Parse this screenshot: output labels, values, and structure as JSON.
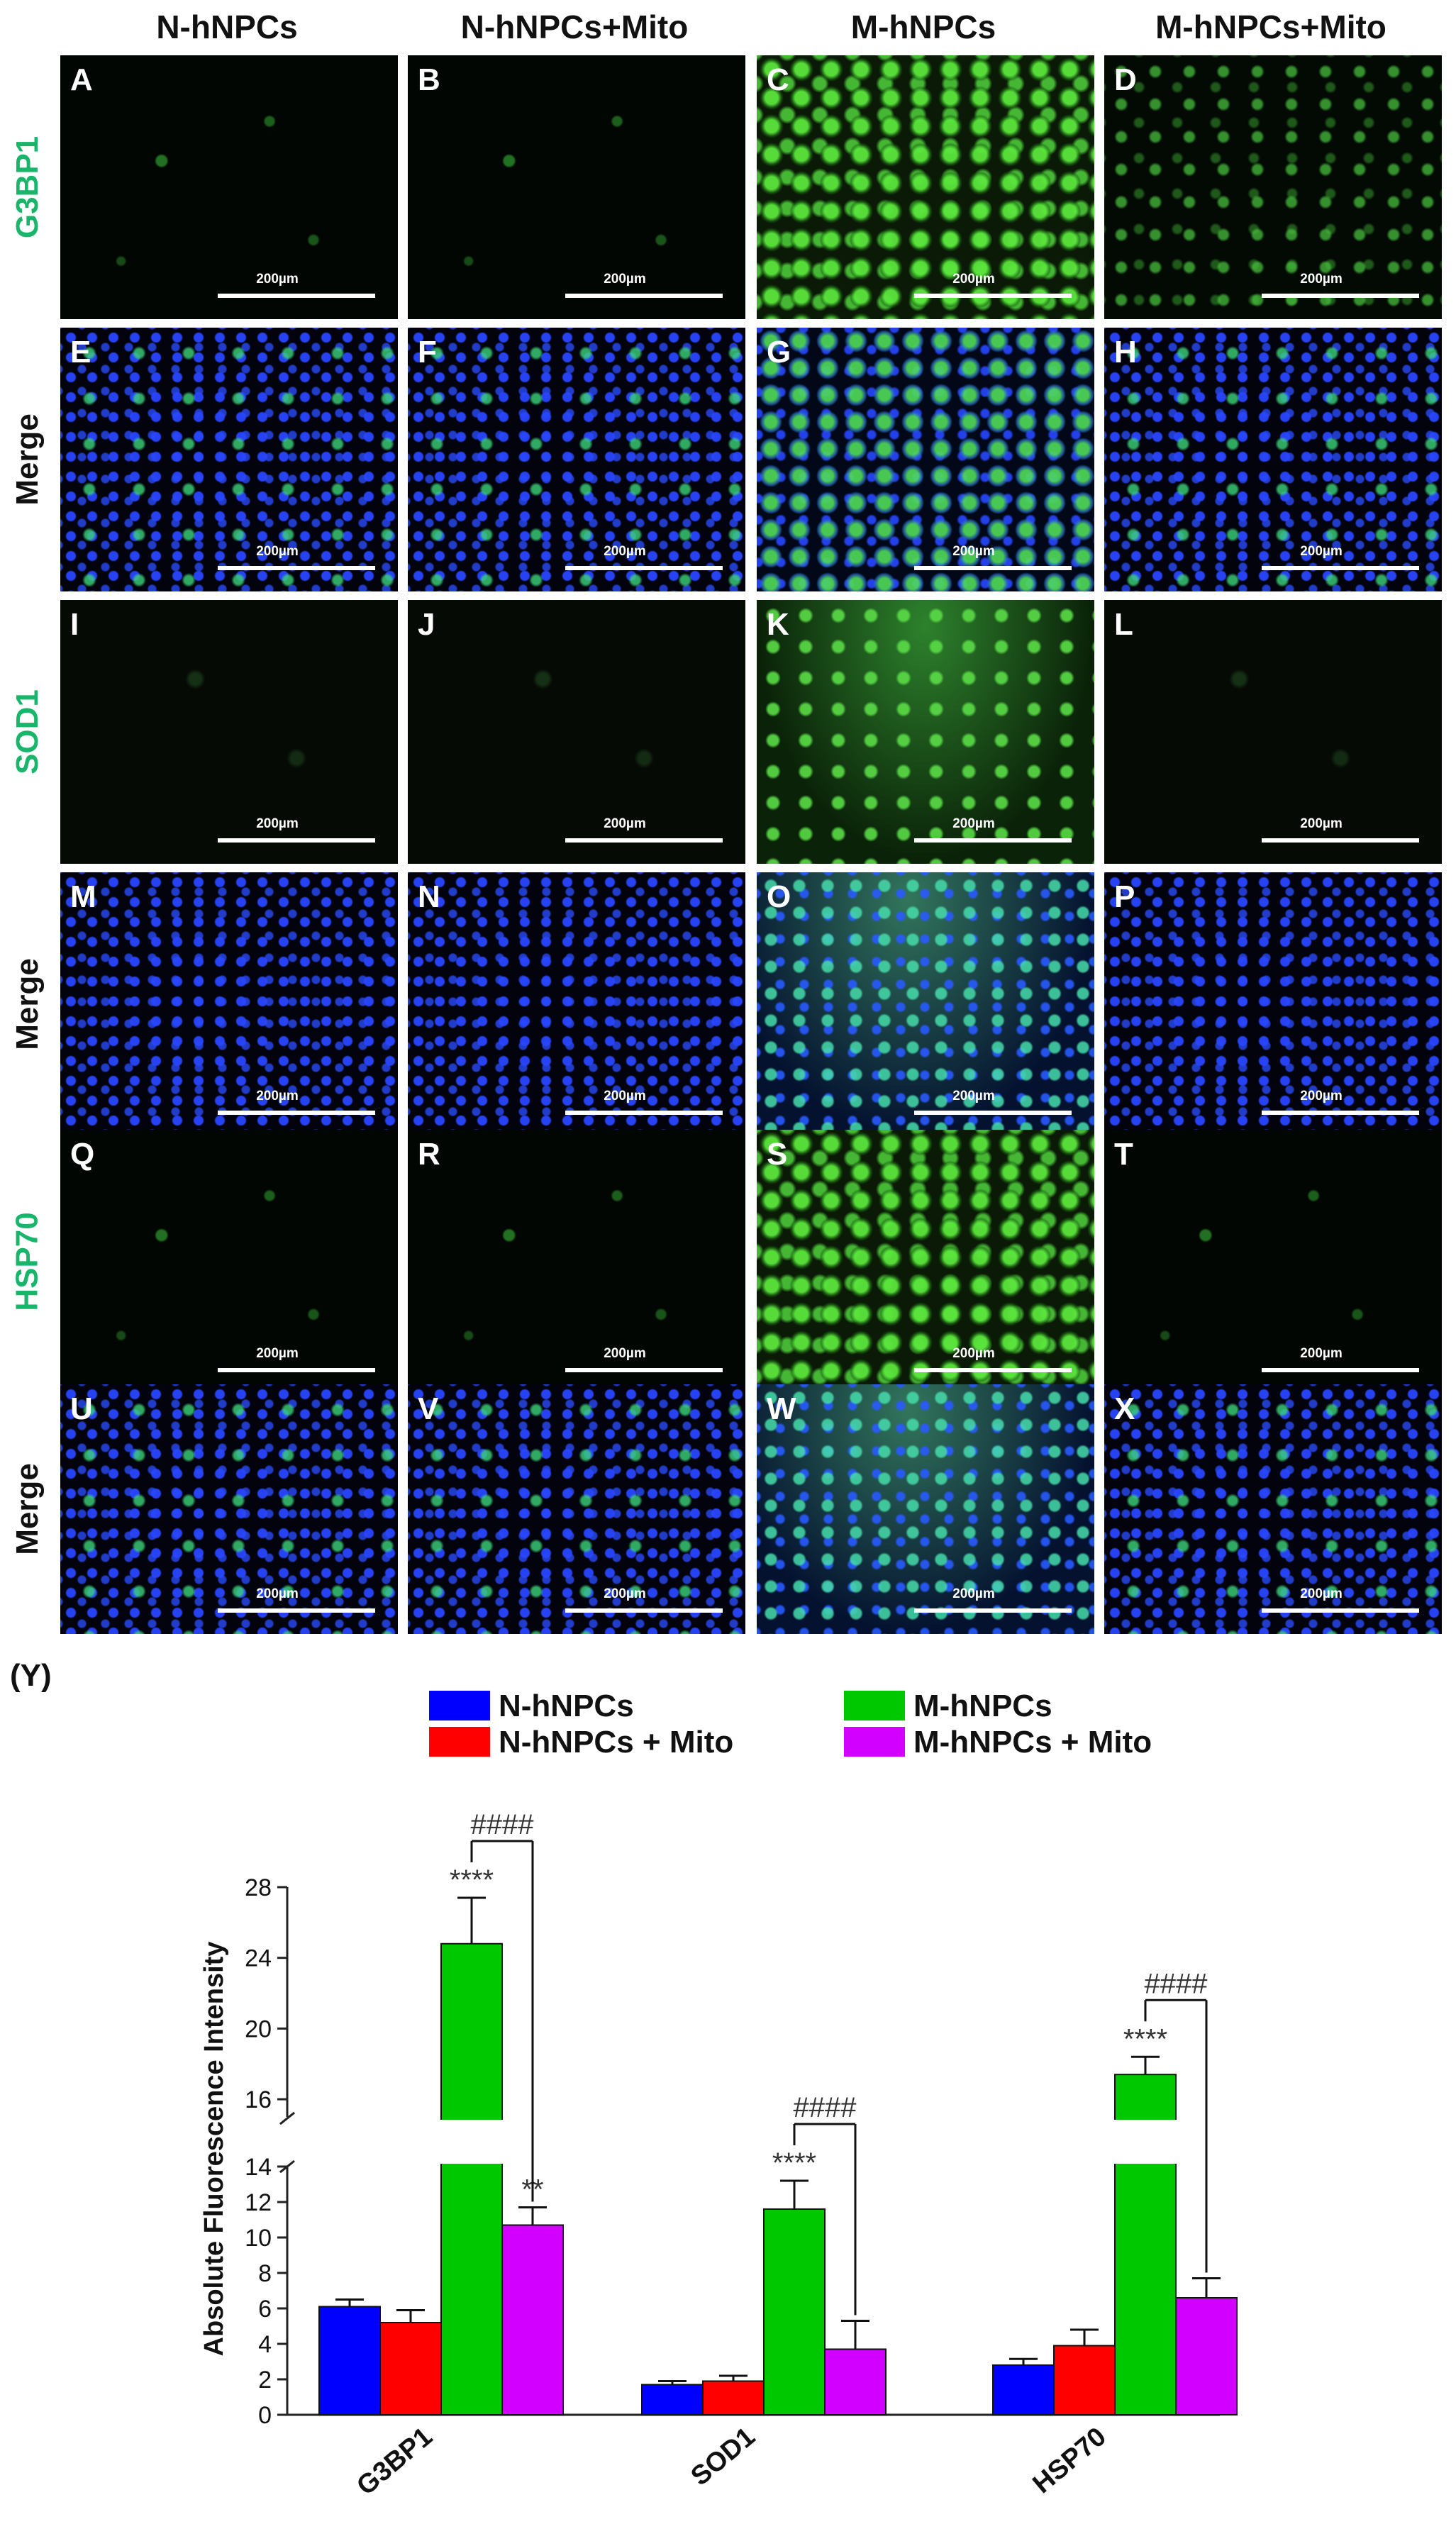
{
  "columns": [
    "N-hNPCs",
    "N-hNPCs+Mito",
    "M-hNPCs",
    "M-hNPCs+Mito"
  ],
  "rows": [
    {
      "label": "G3BP1",
      "color": "green"
    },
    {
      "label": "Merge",
      "color": "black"
    },
    {
      "label": "SOD1",
      "color": "green"
    },
    {
      "label": "Merge",
      "color": "black"
    },
    {
      "label": "HSP70",
      "color": "green"
    },
    {
      "label": "Merge",
      "color": "black"
    }
  ],
  "panel_letters": [
    "A",
    "B",
    "C",
    "D",
    "E",
    "F",
    "G",
    "H",
    "I",
    "J",
    "K",
    "L",
    "M",
    "N",
    "O",
    "P",
    "Q",
    "R",
    "S",
    "T",
    "U",
    "V",
    "W",
    "X"
  ],
  "scale_bar_label": "200µm",
  "panel_label_y": "(Y)",
  "chart_data": {
    "type": "bar",
    "categories": [
      "G3BP1",
      "SOD1",
      "HSP70"
    ],
    "series": [
      {
        "name": "N-hNPCs",
        "color": "#0000ff",
        "values": [
          6.1,
          1.7,
          2.8
        ],
        "errors": [
          0.4,
          0.2,
          0.35
        ]
      },
      {
        "name": "N-hNPCs + Mito",
        "color": "#ff0000",
        "values": [
          5.2,
          1.9,
          3.9
        ],
        "errors": [
          0.7,
          0.3,
          0.9
        ]
      },
      {
        "name": "M-hNPCs",
        "color": "#00c800",
        "values": [
          24.8,
          11.6,
          17.4
        ],
        "errors": [
          2.6,
          1.6,
          1.0
        ]
      },
      {
        "name": "M-hNPCs + Mito",
        "color": "#d200ff",
        "values": [
          10.7,
          3.7,
          6.6
        ],
        "errors": [
          1.0,
          1.6,
          1.1
        ]
      }
    ],
    "ylabel": "Absolute Fluorescence Intensity",
    "yaxis_lower": {
      "range": [
        0,
        14
      ],
      "ticks": [
        0,
        2,
        4,
        6,
        8,
        10,
        12,
        14
      ]
    },
    "yaxis_upper": {
      "range": [
        15,
        28
      ],
      "ticks": [
        16,
        20,
        24,
        28
      ]
    },
    "broken_axis": true,
    "legend_position": "top",
    "annotations": [
      {
        "category": "G3BP1",
        "series": "M-hNPCs",
        "text": "****"
      },
      {
        "category": "G3BP1",
        "series": "M-hNPCs + Mito",
        "text": "**"
      },
      {
        "category": "G3BP1",
        "bracket": [
          "M-hNPCs",
          "M-hNPCs + Mito"
        ],
        "text": "####"
      },
      {
        "category": "SOD1",
        "series": "M-hNPCs",
        "text": "****"
      },
      {
        "category": "SOD1",
        "bracket": [
          "M-hNPCs",
          "M-hNPCs + Mito"
        ],
        "text": "####"
      },
      {
        "category": "HSP70",
        "series": "M-hNPCs",
        "text": "****"
      },
      {
        "category": "HSP70",
        "bracket": [
          "M-hNPCs",
          "M-hNPCs + Mito"
        ],
        "text": "####"
      }
    ]
  }
}
